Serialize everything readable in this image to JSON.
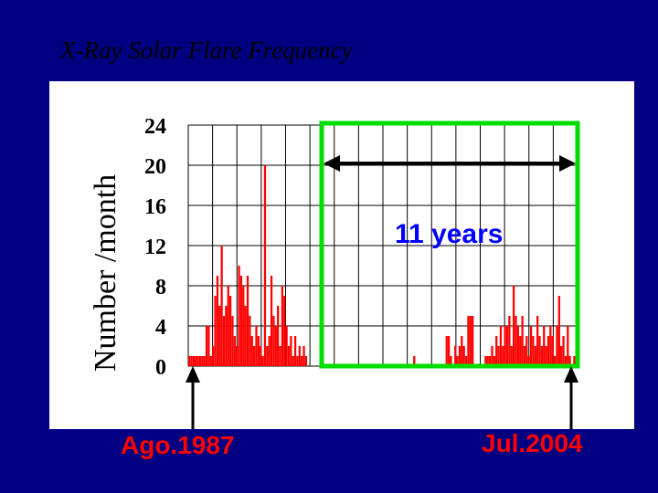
{
  "slide": {
    "title": "X-Ray Solar Flare Frequency"
  },
  "colors": {
    "background": "#000080",
    "bars": "#ff0000",
    "cycle_box": "#00dd00",
    "years_text": "#0000ff",
    "date_text": "#ff0000"
  },
  "annotations": {
    "cycle": "11 years",
    "start": "Ago.1987",
    "end": "Jul.2004"
  },
  "chart_data": {
    "type": "bar",
    "title": "",
    "xlabel": "",
    "ylabel": "Number /month",
    "ylim": [
      0,
      24
    ],
    "yticks": [
      "24",
      "20",
      "16",
      "12",
      "8",
      "4",
      "0"
    ],
    "grid": true,
    "grid_columns": 16,
    "x_start": "Ago.1987",
    "x_end": "Jul.2004",
    "values": [
      1,
      1,
      1,
      1,
      1,
      1,
      1,
      1,
      4,
      4,
      1,
      2,
      7,
      9,
      6,
      12,
      5,
      6,
      8,
      7,
      5,
      3,
      2,
      10,
      9,
      8,
      6,
      9,
      5,
      3,
      2,
      4,
      3,
      2,
      1,
      20,
      2,
      3,
      9,
      5,
      4,
      6,
      2,
      8,
      7,
      4,
      2,
      3,
      1,
      3,
      1,
      2,
      1,
      2,
      1,
      0,
      0,
      0,
      0,
      0,
      0,
      0,
      0,
      0,
      0,
      0,
      0,
      0,
      0,
      0,
      0,
      0,
      0,
      0,
      0,
      0,
      0,
      0,
      0,
      0,
      0,
      0,
      0,
      0,
      0,
      0,
      0,
      0,
      0,
      0,
      0,
      0,
      0,
      0,
      0,
      0,
      0,
      0,
      0,
      0,
      0,
      0,
      0,
      0,
      1,
      0,
      0,
      0,
      0,
      0,
      0,
      0,
      0,
      0,
      0,
      0,
      0,
      0,
      0,
      3,
      3,
      1,
      0,
      2,
      1,
      2,
      3,
      2,
      1,
      5,
      5,
      5,
      0,
      0,
      0,
      0,
      0,
      1,
      1,
      1,
      2,
      1,
      3,
      2,
      4,
      2,
      4,
      4,
      5,
      2,
      8,
      5,
      4,
      3,
      5,
      2,
      3,
      1,
      4,
      3,
      2,
      5,
      3,
      2,
      4,
      2,
      3,
      4,
      3,
      1,
      4,
      7,
      2,
      3,
      1,
      4,
      1,
      0,
      1,
      6
    ]
  }
}
